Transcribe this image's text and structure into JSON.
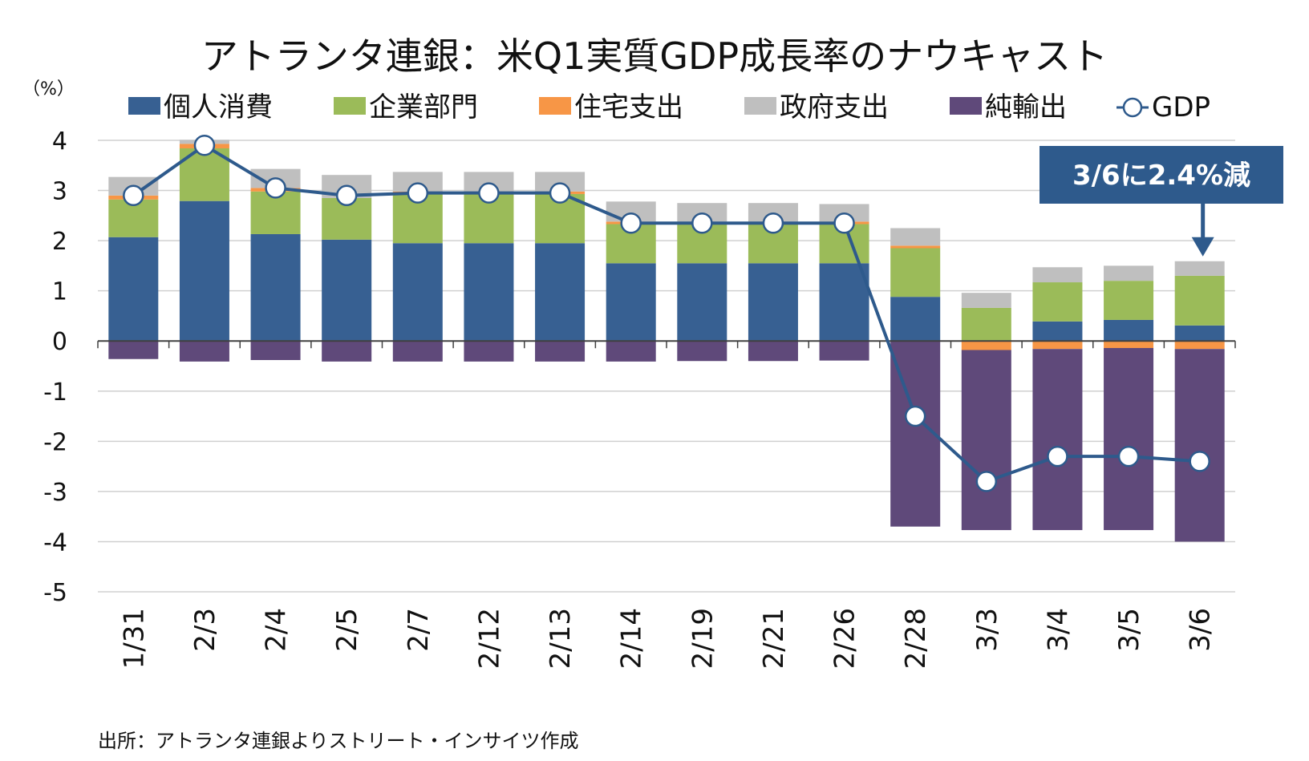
{
  "chart_data": {
    "type": "bar",
    "title": "アトランタ連銀：米Q1実質GDP成長率のナウキャスト",
    "ylabel": "（%）",
    "source": "出所：アトランタ連銀よりストリート・インサイツ作成",
    "ylim": [
      -5,
      4
    ],
    "yticks": [
      4,
      3,
      2,
      1,
      0,
      -1,
      -2,
      -3,
      -4,
      -5
    ],
    "categories": [
      "1/31",
      "2/3",
      "2/4",
      "2/5",
      "2/7",
      "2/12",
      "2/13",
      "2/14",
      "2/19",
      "2/21",
      "2/26",
      "2/28",
      "3/3",
      "3/4",
      "3/5",
      "3/6"
    ],
    "series": [
      {
        "name": "個人消費",
        "color": "#376092",
        "values": [
          2.07,
          2.79,
          2.13,
          2.02,
          1.95,
          1.95,
          1.95,
          1.55,
          1.55,
          1.55,
          1.55,
          0.88,
          0.0,
          0.39,
          0.42,
          0.31
        ]
      },
      {
        "name": "企業部門",
        "color": "#9bbb59",
        "values": [
          0.75,
          1.05,
          0.85,
          0.83,
          0.98,
          0.98,
          0.98,
          0.78,
          0.78,
          0.78,
          0.78,
          0.97,
          0.66,
          0.78,
          0.78,
          0.99
        ]
      },
      {
        "name": "住宅支出",
        "color": "#f79646",
        "values": [
          0.08,
          0.09,
          0.07,
          0.0,
          0.05,
          0.05,
          0.05,
          0.05,
          0.0,
          0.0,
          0.05,
          0.05,
          -0.18,
          -0.16,
          -0.14,
          -0.16
        ]
      },
      {
        "name": "政府支出",
        "color": "#bfbfbf",
        "values": [
          0.37,
          0.08,
          0.38,
          0.46,
          0.39,
          0.39,
          0.39,
          0.4,
          0.42,
          0.42,
          0.35,
          0.35,
          0.3,
          0.3,
          0.3,
          0.29
        ]
      },
      {
        "name": "純輸出",
        "color": "#5f497a",
        "values": [
          -0.36,
          -0.41,
          -0.38,
          -0.41,
          -0.41,
          -0.41,
          -0.41,
          -0.41,
          -0.4,
          -0.4,
          -0.39,
          -3.7,
          -3.59,
          -3.61,
          -3.63,
          -3.84
        ]
      }
    ],
    "line": {
      "name": "GDP",
      "color": "#2e5a8c",
      "values": [
        2.9,
        3.9,
        3.05,
        2.9,
        2.95,
        2.95,
        2.95,
        2.35,
        2.35,
        2.35,
        2.35,
        -1.5,
        -2.8,
        -2.3,
        -2.3,
        -2.4
      ]
    },
    "annotation": {
      "text": "3/6に2.4%減",
      "target": "3/6",
      "box_color": "#2e5a8c"
    },
    "grid": true,
    "legend_position": "top"
  }
}
